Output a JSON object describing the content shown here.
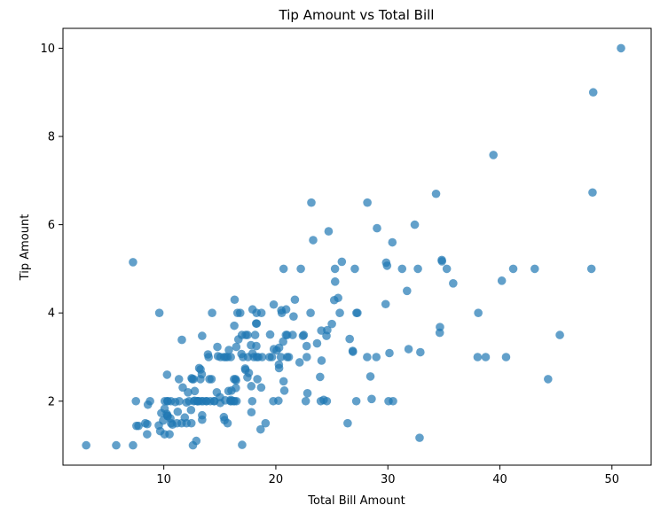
{
  "chart_data": {
    "type": "scatter",
    "title": "Tip Amount vs Total Bill",
    "xlabel": "Total Bill Amount",
    "ylabel": "Tip Amount",
    "xlim": [
      1.0,
      53.5
    ],
    "ylim": [
      0.55,
      10.45
    ],
    "xticks": [
      10,
      20,
      30,
      40,
      50
    ],
    "yticks": [
      2,
      4,
      6,
      8,
      10
    ],
    "grid": false,
    "point_color": "#1f77b4",
    "point_opacity": 0.7,
    "series": [
      {
        "points": [
          [
            16.99,
            1.01
          ],
          [
            10.34,
            1.66
          ],
          [
            21.01,
            3.5
          ],
          [
            23.68,
            3.31
          ],
          [
            24.59,
            3.61
          ],
          [
            25.29,
            4.71
          ],
          [
            8.77,
            2.0
          ],
          [
            26.88,
            3.12
          ],
          [
            15.04,
            1.96
          ],
          [
            14.78,
            3.23
          ],
          [
            10.27,
            1.71
          ],
          [
            35.26,
            5.0
          ],
          [
            15.42,
            1.57
          ],
          [
            18.43,
            3.0
          ],
          [
            14.83,
            3.02
          ],
          [
            21.58,
            3.92
          ],
          [
            10.33,
            1.67
          ],
          [
            16.29,
            3.71
          ],
          [
            16.97,
            3.5
          ],
          [
            20.65,
            3.35
          ],
          [
            17.92,
            4.08
          ],
          [
            20.29,
            2.75
          ],
          [
            15.77,
            2.23
          ],
          [
            39.42,
            7.58
          ],
          [
            19.82,
            3.18
          ],
          [
            17.81,
            2.34
          ],
          [
            13.37,
            2.0
          ],
          [
            12.69,
            2.0
          ],
          [
            21.7,
            4.3
          ],
          [
            19.65,
            3.0
          ],
          [
            9.55,
            1.45
          ],
          [
            18.35,
            2.5
          ],
          [
            15.06,
            3.0
          ],
          [
            20.69,
            2.45
          ],
          [
            17.78,
            3.27
          ],
          [
            24.06,
            3.6
          ],
          [
            16.31,
            2.0
          ],
          [
            16.93,
            3.07
          ],
          [
            18.69,
            2.31
          ],
          [
            31.27,
            5.0
          ],
          [
            16.04,
            2.24
          ],
          [
            17.46,
            2.54
          ],
          [
            13.94,
            3.06
          ],
          [
            9.68,
            1.32
          ],
          [
            30.4,
            5.6
          ],
          [
            18.29,
            3.0
          ],
          [
            22.23,
            5.0
          ],
          [
            32.4,
            6.0
          ],
          [
            28.55,
            2.05
          ],
          [
            18.04,
            3.0
          ],
          [
            12.54,
            2.5
          ],
          [
            10.29,
            2.6
          ],
          [
            34.81,
            5.2
          ],
          [
            9.94,
            1.56
          ],
          [
            25.56,
            4.34
          ],
          [
            19.49,
            3.51
          ],
          [
            38.01,
            3.0
          ],
          [
            26.41,
            1.5
          ],
          [
            11.24,
            1.76
          ],
          [
            48.27,
            6.73
          ],
          [
            20.29,
            3.21
          ],
          [
            13.81,
            2.0
          ],
          [
            11.02,
            1.98
          ],
          [
            18.29,
            3.76
          ],
          [
            17.59,
            2.64
          ],
          [
            20.08,
            3.15
          ],
          [
            16.45,
            2.47
          ],
          [
            3.07,
            1.0
          ],
          [
            20.23,
            2.01
          ],
          [
            15.01,
            2.09
          ],
          [
            12.02,
            1.97
          ],
          [
            17.07,
            3.0
          ],
          [
            26.86,
            3.14
          ],
          [
            25.28,
            5.0
          ],
          [
            14.73,
            2.2
          ],
          [
            10.51,
            1.25
          ],
          [
            17.92,
            3.08
          ],
          [
            27.2,
            4.0
          ],
          [
            22.76,
            3.0
          ],
          [
            17.29,
            2.71
          ],
          [
            19.44,
            3.0
          ],
          [
            16.66,
            3.4
          ],
          [
            10.07,
            1.83
          ],
          [
            32.68,
            5.0
          ],
          [
            15.98,
            2.03
          ],
          [
            34.83,
            5.17
          ],
          [
            13.03,
            2.0
          ],
          [
            18.28,
            4.0
          ],
          [
            24.71,
            5.85
          ],
          [
            21.16,
            3.0
          ],
          [
            28.97,
            3.0
          ],
          [
            22.49,
            3.5
          ],
          [
            5.75,
            1.0
          ],
          [
            16.32,
            4.3
          ],
          [
            22.75,
            3.25
          ],
          [
            40.17,
            4.73
          ],
          [
            27.28,
            4.0
          ],
          [
            12.03,
            1.5
          ],
          [
            21.01,
            3.0
          ],
          [
            12.46,
            1.5
          ],
          [
            11.35,
            2.5
          ],
          [
            15.38,
            3.0
          ],
          [
            44.3,
            2.5
          ],
          [
            22.42,
            3.48
          ],
          [
            20.92,
            4.08
          ],
          [
            15.36,
            1.64
          ],
          [
            20.49,
            4.06
          ],
          [
            25.21,
            4.29
          ],
          [
            18.24,
            3.76
          ],
          [
            14.31,
            4.0
          ],
          [
            14.0,
            3.0
          ],
          [
            7.25,
            1.0
          ],
          [
            38.07,
            4.0
          ],
          [
            23.95,
            2.55
          ],
          [
            25.71,
            4.0
          ],
          [
            17.31,
            3.5
          ],
          [
            29.93,
            5.07
          ],
          [
            10.65,
            1.5
          ],
          [
            12.43,
            1.8
          ],
          [
            24.08,
            2.92
          ],
          [
            11.69,
            2.31
          ],
          [
            13.42,
            1.68
          ],
          [
            14.26,
            2.5
          ],
          [
            15.95,
            2.0
          ],
          [
            12.48,
            2.52
          ],
          [
            29.8,
            4.2
          ],
          [
            8.52,
            1.48
          ],
          [
            14.52,
            2.0
          ],
          [
            11.38,
            2.0
          ],
          [
            22.82,
            2.18
          ],
          [
            19.08,
            1.5
          ],
          [
            20.27,
            2.83
          ],
          [
            11.17,
            1.5
          ],
          [
            12.26,
            2.0
          ],
          [
            18.26,
            3.25
          ],
          [
            8.51,
            1.25
          ],
          [
            10.33,
            2.0
          ],
          [
            14.15,
            2.0
          ],
          [
            16.0,
            2.0
          ],
          [
            13.16,
            2.75
          ],
          [
            17.47,
            3.5
          ],
          [
            34.3,
            6.7
          ],
          [
            41.19,
            5.0
          ],
          [
            27.05,
            5.0
          ],
          [
            16.43,
            2.3
          ],
          [
            8.35,
            1.5
          ],
          [
            18.64,
            1.36
          ],
          [
            11.87,
            1.63
          ],
          [
            9.78,
            1.73
          ],
          [
            7.51,
            2.0
          ],
          [
            14.07,
            2.5
          ],
          [
            13.13,
            2.0
          ],
          [
            17.26,
            2.74
          ],
          [
            24.55,
            2.0
          ],
          [
            19.77,
            2.0
          ],
          [
            29.85,
            5.14
          ],
          [
            48.17,
            5.0
          ],
          [
            25.0,
            3.75
          ],
          [
            13.39,
            2.61
          ],
          [
            16.49,
            2.0
          ],
          [
            21.5,
            3.5
          ],
          [
            12.66,
            2.5
          ],
          [
            16.21,
            2.0
          ],
          [
            13.81,
            2.0
          ],
          [
            17.51,
            3.0
          ],
          [
            24.52,
            3.48
          ],
          [
            20.76,
            2.24
          ],
          [
            31.71,
            4.5
          ],
          [
            10.59,
            1.61
          ],
          [
            10.63,
            2.0
          ],
          [
            50.81,
            10.0
          ],
          [
            15.81,
            3.16
          ],
          [
            7.25,
            5.15
          ],
          [
            31.85,
            3.18
          ],
          [
            16.82,
            4.0
          ],
          [
            32.9,
            3.11
          ],
          [
            17.89,
            2.0
          ],
          [
            14.48,
            2.0
          ],
          [
            9.6,
            4.0
          ],
          [
            34.63,
            3.55
          ],
          [
            34.65,
            3.68
          ],
          [
            23.33,
            5.65
          ],
          [
            45.35,
            3.5
          ],
          [
            23.17,
            6.5
          ],
          [
            40.55,
            3.0
          ],
          [
            20.69,
            5.0
          ],
          [
            20.9,
            3.5
          ],
          [
            30.46,
            2.0
          ],
          [
            18.15,
            3.5
          ],
          [
            23.1,
            4.0
          ],
          [
            15.69,
            1.5
          ],
          [
            19.81,
            4.19
          ],
          [
            28.44,
            2.56
          ],
          [
            15.48,
            2.02
          ],
          [
            16.58,
            4.0
          ],
          [
            7.56,
            1.44
          ],
          [
            10.34,
            2.0
          ],
          [
            43.11,
            5.0
          ],
          [
            13.0,
            2.0
          ],
          [
            13.51,
            2.0
          ],
          [
            18.71,
            4.0
          ],
          [
            12.74,
            2.01
          ],
          [
            13.0,
            2.0
          ],
          [
            16.4,
            2.5
          ],
          [
            20.53,
            4.0
          ],
          [
            16.47,
            3.23
          ],
          [
            26.59,
            3.41
          ],
          [
            38.73,
            3.0
          ],
          [
            24.27,
            2.03
          ],
          [
            12.76,
            2.23
          ],
          [
            30.06,
            2.0
          ],
          [
            25.89,
            5.16
          ],
          [
            48.33,
            9.0
          ],
          [
            13.27,
            2.5
          ],
          [
            28.17,
            6.5
          ],
          [
            12.9,
            1.1
          ],
          [
            28.15,
            3.0
          ],
          [
            11.59,
            1.5
          ],
          [
            7.74,
            1.44
          ],
          [
            30.14,
            3.09
          ],
          [
            12.16,
            2.2
          ],
          [
            13.42,
            3.48
          ],
          [
            8.58,
            1.92
          ],
          [
            15.98,
            3.0
          ],
          [
            13.42,
            1.58
          ],
          [
            16.27,
            2.5
          ],
          [
            10.09,
            2.0
          ],
          [
            20.45,
            3.0
          ],
          [
            13.28,
            2.72
          ],
          [
            22.12,
            2.88
          ],
          [
            24.01,
            2.0
          ],
          [
            15.69,
            3.0
          ],
          [
            11.61,
            3.39
          ],
          [
            10.77,
            1.47
          ],
          [
            15.53,
            3.0
          ],
          [
            10.07,
            1.25
          ],
          [
            12.6,
            1.0
          ],
          [
            32.83,
            1.17
          ],
          [
            35.83,
            4.67
          ],
          [
            29.03,
            5.92
          ],
          [
            27.18,
            2.0
          ],
          [
            22.67,
            2.0
          ],
          [
            17.82,
            1.75
          ],
          [
            18.78,
            3.0
          ]
        ]
      }
    ]
  }
}
